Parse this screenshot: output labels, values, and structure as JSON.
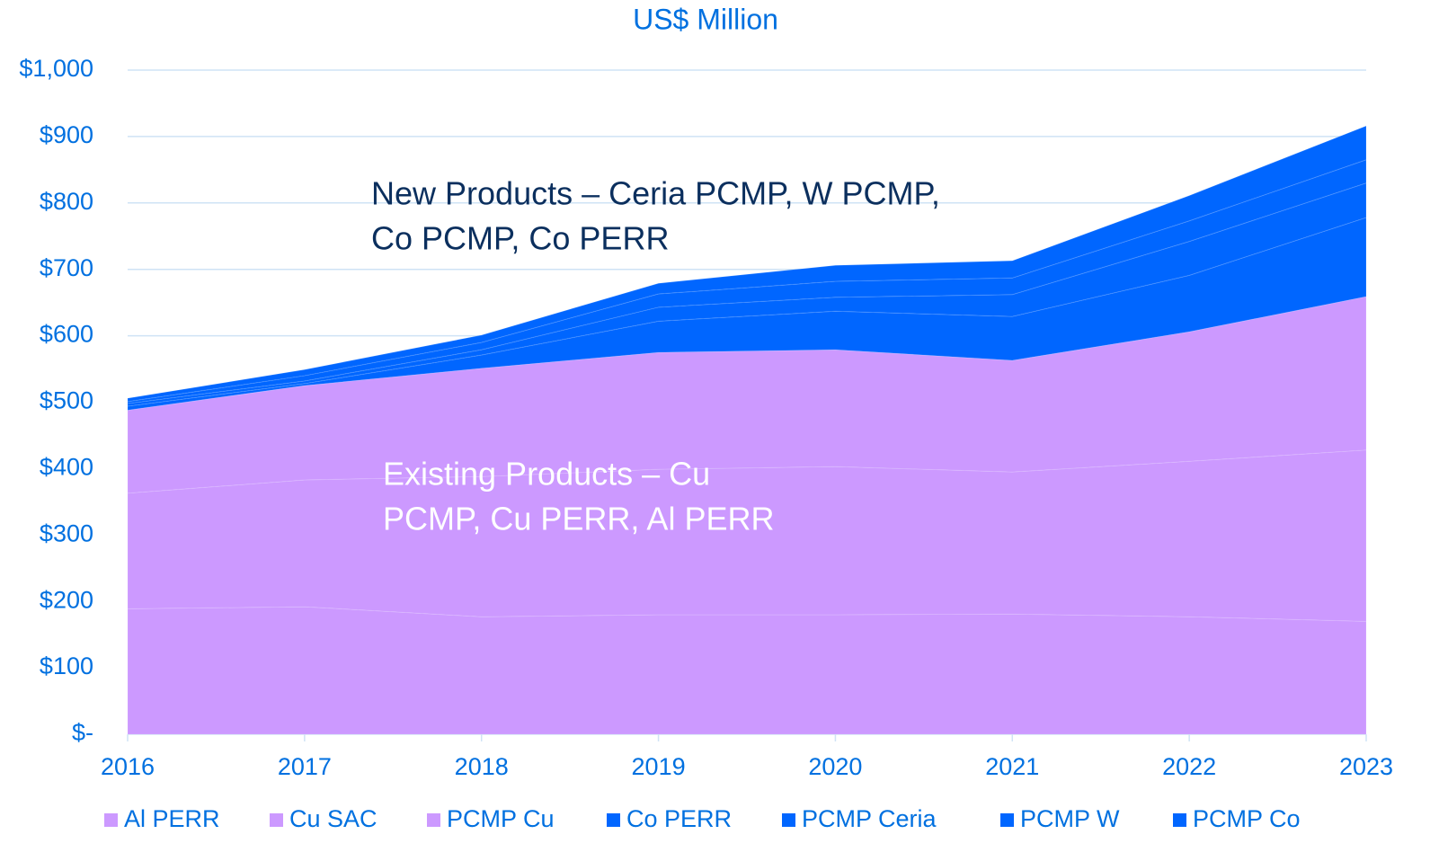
{
  "chart_data": {
    "type": "stacked_area",
    "title": "US$ Million",
    "categories": [
      "2016",
      "2017",
      "2018",
      "2019",
      "2020",
      "2021",
      "2022",
      "2023"
    ],
    "series": [
      {
        "name": "Al PERR",
        "color": "#cc99ff",
        "values": [
          189,
          192,
          177,
          180,
          180,
          181,
          177,
          170
        ]
      },
      {
        "name": "Cu SAC",
        "color": "#cc99ff",
        "values": [
          174,
          191,
          211,
          219,
          223,
          214,
          234,
          258
        ]
      },
      {
        "name": "PCMP Cu",
        "color": "#cc99ff",
        "values": [
          125,
          142,
          163,
          176,
          176,
          168,
          195,
          231
        ]
      },
      {
        "name": "Co PERR",
        "color": "#0066ff",
        "values": [
          6,
          3,
          20,
          47,
          58,
          66,
          85,
          119
        ]
      },
      {
        "name": "PCMP Ceria",
        "color": "#0066ff",
        "values": [
          4,
          4,
          8,
          21,
          21,
          33,
          51,
          52
        ]
      },
      {
        "name": "PCMP W",
        "color": "#0066ff",
        "values": [
          3,
          8,
          11,
          20,
          24,
          25,
          31,
          35
        ]
      },
      {
        "name": "PCMP Co",
        "color": "#0066ff",
        "values": [
          5,
          9,
          11,
          16,
          24,
          26,
          38,
          51
        ]
      }
    ],
    "ylim": [
      0,
      1000
    ],
    "yticks": [
      {
        "value": 0,
        "label": "$-"
      },
      {
        "value": 100,
        "label": "$100"
      },
      {
        "value": 200,
        "label": "$200"
      },
      {
        "value": 300,
        "label": "$300"
      },
      {
        "value": 400,
        "label": "$400"
      },
      {
        "value": 500,
        "label": "$500"
      },
      {
        "value": 600,
        "label": "$600"
      },
      {
        "value": 700,
        "label": "$700"
      },
      {
        "value": 800,
        "label": "$800"
      },
      {
        "value": 900,
        "label": "$900"
      },
      {
        "value": 1000,
        "label": "$1,000"
      }
    ],
    "grid": true,
    "annotations": [
      {
        "lines": [
          "New Products – Ceria PCMP, W PCMP,",
          "Co PCMP, Co PERR"
        ]
      },
      {
        "lines": [
          "Existing Products – Cu",
          "PCMP, Cu PERR, Al PERR"
        ]
      }
    ]
  }
}
